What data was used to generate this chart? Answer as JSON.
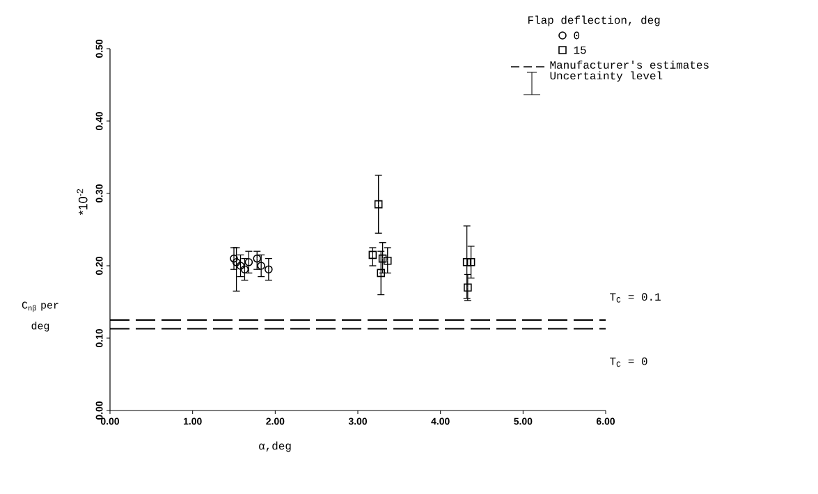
{
  "chart_data": {
    "type": "scatter",
    "xlabel": "α,deg",
    "ylabel": "C$_{nβ}$ per deg",
    "legend_title": "Flap deflection, deg",
    "legend": "top right",
    "xlim": [
      0,
      6
    ],
    "ylim": [
      0,
      0.5
    ],
    "xticks": [
      {
        "value": 0,
        "label": "0.00"
      },
      {
        "value": 1,
        "label": "1.00"
      },
      {
        "value": 2,
        "label": "2.00"
      },
      {
        "value": 3,
        "label": "3.00"
      },
      {
        "value": 4,
        "label": "4.00"
      },
      {
        "value": 5,
        "label": "5.00"
      },
      {
        "value": 6,
        "label": "6.00"
      }
    ],
    "yticks": [
      {
        "value": 0,
        "label": "0.00"
      },
      {
        "value": 0.1,
        "label": "0.10"
      },
      {
        "value": 0.2,
        "label": "0.20"
      },
      {
        "value": 0.3,
        "label": "0.30"
      },
      {
        "value": 0.4,
        "label": "0.40"
      },
      {
        "value": 0.5,
        "label": "0.50"
      }
    ],
    "series": [
      {
        "name": "0",
        "color": "#000000",
        "marker": "circle",
        "x": [
          1.5,
          1.53,
          1.58,
          1.63,
          1.68,
          1.78,
          1.83,
          1.92
        ],
        "values": [
          0.21,
          0.205,
          0.2,
          0.195,
          0.205,
          0.21,
          0.2,
          0.195
        ],
        "errors": [
          [
            0.195,
            0.225
          ],
          [
            0.165,
            0.225
          ],
          [
            0.185,
            0.215
          ],
          [
            0.18,
            0.21
          ],
          [
            0.19,
            0.22
          ],
          [
            0.195,
            0.22
          ],
          [
            0.185,
            0.215
          ],
          [
            0.18,
            0.21
          ]
        ]
      },
      {
        "name": "15",
        "color": "#000000",
        "marker": "square",
        "x": [
          3.18,
          3.25,
          3.28,
          3.3,
          3.36,
          4.32,
          4.37,
          4.33
        ],
        "values": [
          0.215,
          0.285,
          0.19,
          0.21,
          0.207,
          0.205,
          0.205,
          0.17
        ],
        "errors": [
          [
            0.2,
            0.225
          ],
          [
            0.245,
            0.325
          ],
          [
            0.16,
            0.22
          ],
          [
            0.19,
            0.232
          ],
          [
            0.19,
            0.225
          ],
          [
            0.155,
            0.255
          ],
          [
            0.183,
            0.227
          ],
          [
            0.152,
            0.188
          ]
        ]
      }
    ],
    "ref_lines": [
      {
        "axis": "y",
        "value": 0.125,
        "label": "T$_{C}$ = 0.1",
        "line_style": "dashed",
        "color": "#000000"
      },
      {
        "axis": "y",
        "value": 0.113,
        "label": "T$_{C}$ = 0",
        "line_style": "dashed",
        "color": "#000000"
      }
    ],
    "annotations": [
      "*10$^{-2}$",
      "Manufacturer's estimates",
      "Uncertainty level"
    ]
  }
}
